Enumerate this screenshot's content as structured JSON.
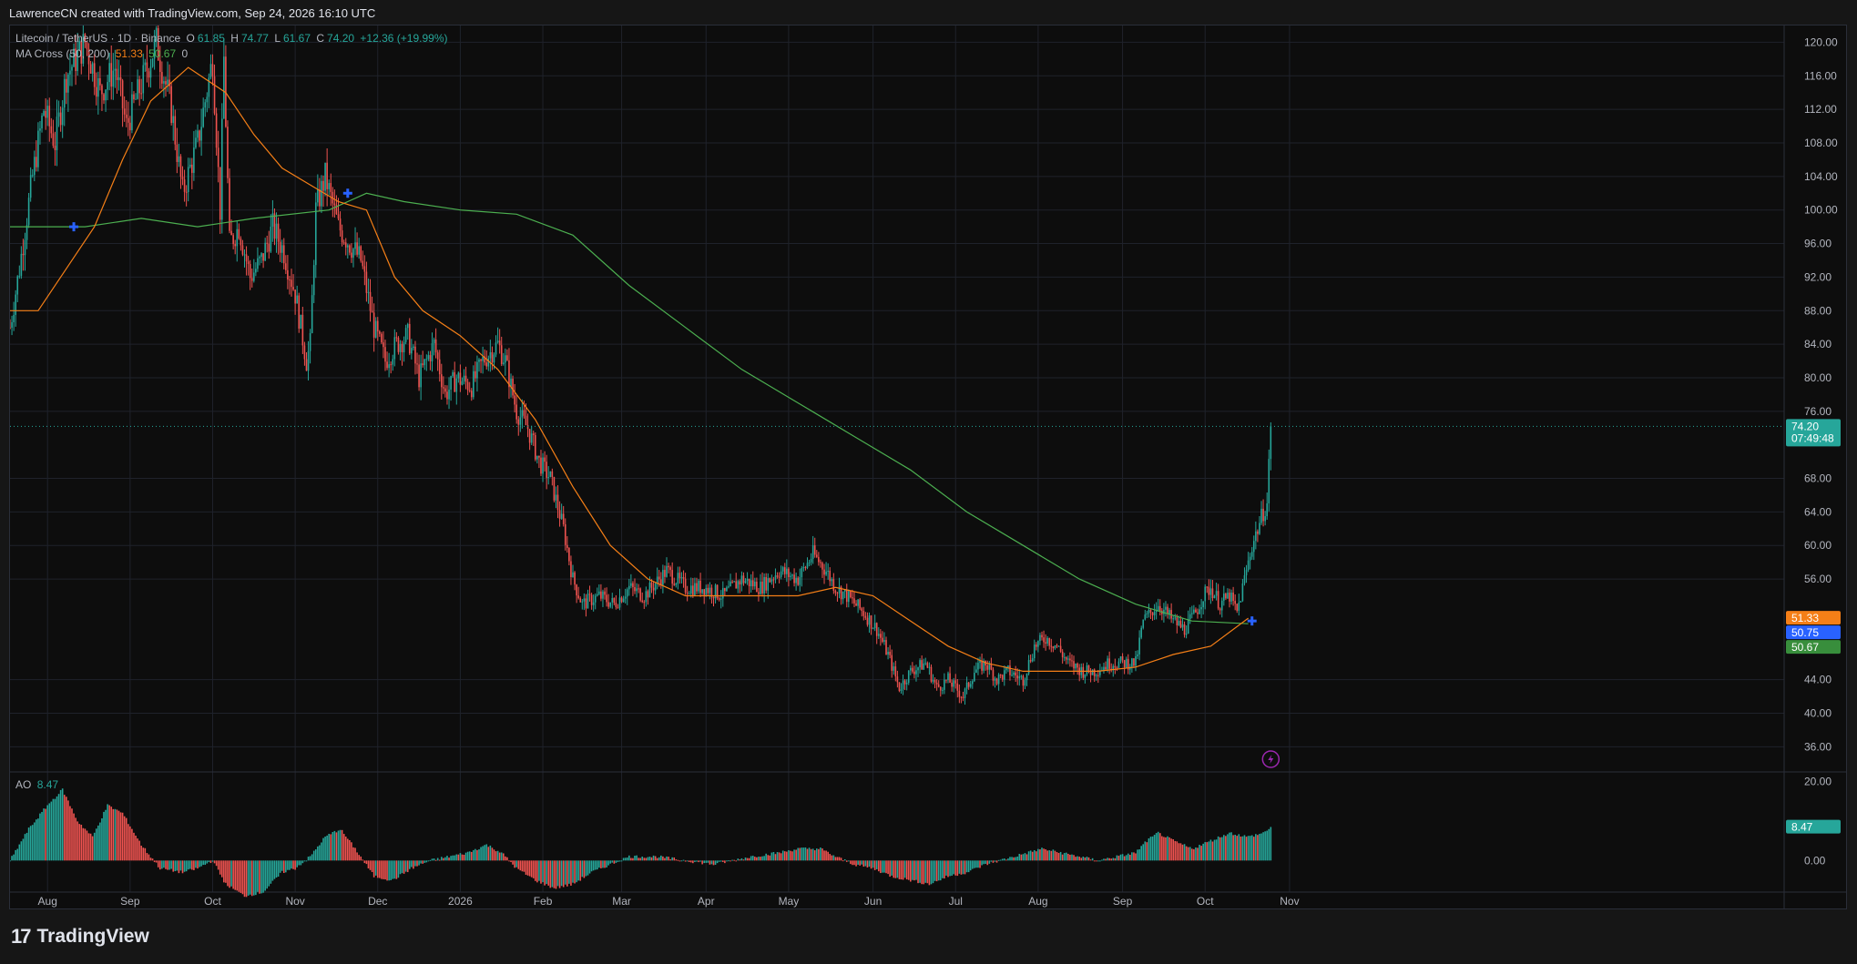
{
  "header": {
    "credit": "LawrenceCN created with TradingView.com, Sep 24, 2026 16:10 UTC"
  },
  "legend": {
    "symbol": "Litecoin / TetherUS · 1D · Binance",
    "o_label": "O",
    "o_value": "61.85",
    "h_label": "H",
    "h_value": "74.77",
    "l_label": "L",
    "l_value": "61.67",
    "c_label": "C",
    "c_value": "74.20",
    "change": "+12.36 (+19.99%)",
    "ma_label": "MA Cross (50, 200)",
    "ma_fast": "51.33",
    "ma_slow": "50.67",
    "ma_extra": "0",
    "ao_label": "AO",
    "ao_value": "8.47"
  },
  "price_tags": {
    "last_price": "74.20",
    "countdown": "07:49:48",
    "fast_ma": "51.33",
    "mid": "50.75",
    "slow_ma": "50.67",
    "ao": "8.47"
  },
  "colors": {
    "up": "#26a69a",
    "down": "#ef5350",
    "ma_fast": "#f57f17",
    "ma_slow": "#4caf50",
    "cross": "#2962ff"
  },
  "footer": {
    "brand_mark": "17",
    "brand": "TradingView"
  },
  "chart_data": {
    "type": "candlestick",
    "title": "Litecoin / TetherUS · 1D · Binance",
    "y_ticks": [
      "120.00",
      "116.00",
      "112.00",
      "108.00",
      "104.00",
      "100.00",
      "96.00",
      "92.00",
      "88.00",
      "84.00",
      "80.00",
      "76.00",
      "68.00",
      "64.00",
      "60.00",
      "56.00",
      "44.00",
      "40.00",
      "36.00"
    ],
    "ylim": [
      33,
      122
    ],
    "ao_ticks": [
      "20.00",
      "0.00"
    ],
    "ao_ylim": [
      -8,
      22
    ],
    "x_ticks": [
      "Aug",
      "Sep",
      "Oct",
      "Nov",
      "Dec",
      "2026",
      "Feb",
      "Mar",
      "Apr",
      "May",
      "Jun",
      "Jul",
      "Aug",
      "Sep",
      "Oct",
      "Nov"
    ],
    "x_ticks_day": [
      20,
      64,
      108,
      152,
      196,
      240,
      284,
      326,
      371,
      415,
      460,
      504,
      548,
      593,
      637,
      682
    ],
    "price_path": [
      [
        0,
        86
      ],
      [
        5,
        93
      ],
      [
        12,
        104
      ],
      [
        18,
        112
      ],
      [
        24,
        108
      ],
      [
        30,
        116
      ],
      [
        40,
        120
      ],
      [
        48,
        114
      ],
      [
        56,
        117
      ],
      [
        62,
        110
      ],
      [
        70,
        115
      ],
      [
        78,
        120
      ],
      [
        86,
        112
      ],
      [
        92,
        102
      ],
      [
        100,
        108
      ],
      [
        108,
        118
      ],
      [
        112,
        100
      ],
      [
        114,
        118
      ],
      [
        117,
        96
      ],
      [
        122,
        98
      ],
      [
        128,
        92
      ],
      [
        134,
        94
      ],
      [
        140,
        98
      ],
      [
        146,
        95
      ],
      [
        152,
        90
      ],
      [
        158,
        82
      ],
      [
        160,
        84
      ],
      [
        163,
        100
      ],
      [
        168,
        104
      ],
      [
        175,
        98
      ],
      [
        181,
        96
      ],
      [
        187,
        94
      ],
      [
        194,
        86
      ],
      [
        200,
        82
      ],
      [
        206,
        84
      ],
      [
        212,
        85
      ],
      [
        218,
        80
      ],
      [
        226,
        84
      ],
      [
        232,
        78
      ],
      [
        238,
        80
      ],
      [
        246,
        79
      ],
      [
        252,
        82
      ],
      [
        260,
        84
      ],
      [
        264,
        82
      ],
      [
        270,
        76
      ],
      [
        276,
        74
      ],
      [
        282,
        70
      ],
      [
        288,
        68
      ],
      [
        295,
        62
      ],
      [
        300,
        56
      ],
      [
        305,
        53
      ],
      [
        314,
        54
      ],
      [
        322,
        53
      ],
      [
        330,
        55
      ],
      [
        338,
        54
      ],
      [
        350,
        57
      ],
      [
        360,
        55
      ],
      [
        370,
        55
      ],
      [
        380,
        54
      ],
      [
        390,
        56
      ],
      [
        400,
        55
      ],
      [
        410,
        57
      ],
      [
        420,
        56
      ],
      [
        428,
        59
      ],
      [
        435,
        57
      ],
      [
        440,
        55
      ],
      [
        446,
        54
      ],
      [
        455,
        52
      ],
      [
        462,
        50
      ],
      [
        468,
        47
      ],
      [
        474,
        43
      ],
      [
        480,
        45
      ],
      [
        488,
        46
      ],
      [
        494,
        43
      ],
      [
        500,
        44
      ],
      [
        508,
        42
      ],
      [
        514,
        45
      ],
      [
        520,
        46
      ],
      [
        526,
        44
      ],
      [
        532,
        45
      ],
      [
        540,
        44
      ],
      [
        546,
        48
      ],
      [
        552,
        49
      ],
      [
        558,
        48
      ],
      [
        564,
        46
      ],
      [
        572,
        45
      ],
      [
        578,
        45
      ],
      [
        586,
        46
      ],
      [
        594,
        46
      ],
      [
        600,
        46
      ],
      [
        604,
        51
      ],
      [
        608,
        52
      ],
      [
        612,
        53
      ],
      [
        620,
        51
      ],
      [
        626,
        50
      ],
      [
        632,
        52
      ],
      [
        636,
        54
      ],
      [
        640,
        55
      ],
      [
        645,
        53
      ],
      [
        650,
        54
      ],
      [
        654,
        52
      ],
      [
        658,
        56
      ],
      [
        662,
        60
      ],
      [
        665,
        62
      ],
      [
        668,
        64
      ],
      [
        670,
        65
      ],
      [
        672,
        74.2
      ]
    ],
    "ma200_path": [
      [
        0,
        98
      ],
      [
        40,
        98
      ],
      [
        70,
        99
      ],
      [
        100,
        98
      ],
      [
        130,
        99
      ],
      [
        170,
        100
      ],
      [
        190,
        102
      ],
      [
        210,
        101
      ],
      [
        240,
        100
      ],
      [
        270,
        99.5
      ],
      [
        300,
        97
      ],
      [
        330,
        91
      ],
      [
        360,
        86
      ],
      [
        390,
        81
      ],
      [
        420,
        77
      ],
      [
        450,
        73
      ],
      [
        480,
        69
      ],
      [
        510,
        64
      ],
      [
        540,
        60
      ],
      [
        570,
        56
      ],
      [
        600,
        53
      ],
      [
        630,
        51
      ],
      [
        660,
        50.67
      ]
    ],
    "ma50_path": [
      [
        0,
        88
      ],
      [
        15,
        88
      ],
      [
        30,
        93
      ],
      [
        45,
        98
      ],
      [
        60,
        106
      ],
      [
        75,
        113
      ],
      [
        95,
        117
      ],
      [
        115,
        114
      ],
      [
        130,
        109
      ],
      [
        145,
        105
      ],
      [
        160,
        103
      ],
      [
        175,
        101
      ],
      [
        190,
        100
      ],
      [
        205,
        92
      ],
      [
        220,
        88
      ],
      [
        240,
        85
      ],
      [
        260,
        81
      ],
      [
        280,
        75
      ],
      [
        300,
        67
      ],
      [
        320,
        60
      ],
      [
        340,
        56
      ],
      [
        360,
        54
      ],
      [
        380,
        54
      ],
      [
        400,
        54
      ],
      [
        420,
        54
      ],
      [
        440,
        55
      ],
      [
        460,
        54
      ],
      [
        480,
        51
      ],
      [
        500,
        48
      ],
      [
        520,
        46
      ],
      [
        540,
        45
      ],
      [
        560,
        45
      ],
      [
        580,
        45
      ],
      [
        600,
        45.5
      ],
      [
        620,
        47
      ],
      [
        640,
        48
      ],
      [
        660,
        51.33
      ]
    ],
    "crosses": [
      {
        "day": 34,
        "price": 98
      },
      {
        "day": 180,
        "price": 102
      },
      {
        "day": 662,
        "price": 51
      }
    ],
    "ao_path": [
      [
        0,
        0
      ],
      [
        10,
        8
      ],
      [
        20,
        14
      ],
      [
        28,
        18
      ],
      [
        36,
        10
      ],
      [
        44,
        6
      ],
      [
        52,
        14
      ],
      [
        60,
        12
      ],
      [
        70,
        4
      ],
      [
        80,
        -2
      ],
      [
        92,
        -3
      ],
      [
        100,
        -2
      ],
      [
        108,
        0
      ],
      [
        115,
        -6
      ],
      [
        125,
        -9
      ],
      [
        135,
        -8
      ],
      [
        145,
        -3
      ],
      [
        152,
        -2
      ],
      [
        160,
        1
      ],
      [
        168,
        6
      ],
      [
        176,
        8
      ],
      [
        184,
        3
      ],
      [
        194,
        -4
      ],
      [
        204,
        -5
      ],
      [
        214,
        -2
      ],
      [
        224,
        0
      ],
      [
        234,
        1
      ],
      [
        244,
        2
      ],
      [
        254,
        4
      ],
      [
        262,
        2
      ],
      [
        270,
        -2
      ],
      [
        280,
        -5
      ],
      [
        290,
        -7
      ],
      [
        300,
        -6
      ],
      [
        310,
        -3
      ],
      [
        320,
        -1
      ],
      [
        330,
        1
      ],
      [
        345,
        1
      ],
      [
        360,
        0
      ],
      [
        375,
        -1
      ],
      [
        395,
        1
      ],
      [
        410,
        2
      ],
      [
        420,
        3
      ],
      [
        432,
        3
      ],
      [
        440,
        1
      ],
      [
        450,
        -1
      ],
      [
        460,
        -2
      ],
      [
        470,
        -4
      ],
      [
        480,
        -5
      ],
      [
        490,
        -6
      ],
      [
        500,
        -4
      ],
      [
        510,
        -3
      ],
      [
        520,
        -1
      ],
      [
        535,
        1
      ],
      [
        550,
        3
      ],
      [
        560,
        2
      ],
      [
        570,
        1
      ],
      [
        580,
        0
      ],
      [
        590,
        1
      ],
      [
        600,
        2
      ],
      [
        606,
        5
      ],
      [
        612,
        7
      ],
      [
        620,
        5
      ],
      [
        630,
        3
      ],
      [
        640,
        5
      ],
      [
        650,
        7
      ],
      [
        660,
        6
      ],
      [
        668,
        7
      ],
      [
        672,
        8.47
      ]
    ]
  }
}
